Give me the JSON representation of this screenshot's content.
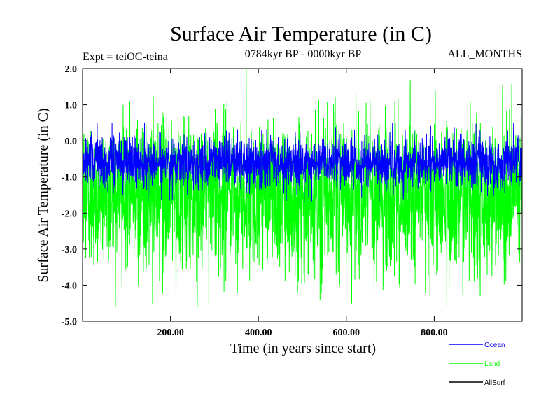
{
  "chart_data": {
    "type": "line",
    "title": "Surface Air Temperature (in C)",
    "subtitle_left": "Expt = teiOC-teina",
    "subtitle_center": "0784kyr BP - 0000kyr BP",
    "subtitle_right": "ALL_MONTHS",
    "xlabel": "Time (in years since start)",
    "ylabel": "Surface Air Temperature (in C)",
    "xlim": [
      0,
      1000
    ],
    "ylim": [
      -5.0,
      2.0
    ],
    "x_ticks": [
      200,
      400,
      600,
      800
    ],
    "x_tick_labels": [
      "200.00",
      "400.00",
      "600.00",
      "800.00"
    ],
    "y_ticks": [
      2.0,
      1.0,
      0.0,
      -1.0,
      -2.0,
      -3.0,
      -4.0,
      -5.0
    ],
    "y_tick_labels": [
      "2.0",
      "1.0",
      "0.0",
      "-1.0",
      "-2.0",
      "-3.0",
      "-4.0",
      "-5.0"
    ],
    "series": [
      {
        "name": "Land",
        "color": "#00ff00",
        "approx_mean": -1.5,
        "approx_min": -4.6,
        "approx_max": 2.0
      },
      {
        "name": "Ocean",
        "color": "#0000ff",
        "approx_mean": -0.6,
        "approx_min": -1.7,
        "approx_max": 0.5
      },
      {
        "name": "AllSurf",
        "color": "#000000",
        "approx_mean": -0.8,
        "approx_min": -1.5,
        "approx_max": -0.2
      }
    ],
    "legend": [
      {
        "label": "Ocean",
        "color": "#0000ff"
      },
      {
        "label": "Land",
        "color": "#00ff00"
      },
      {
        "label": "AllSurf",
        "color": "#000000"
      }
    ]
  }
}
